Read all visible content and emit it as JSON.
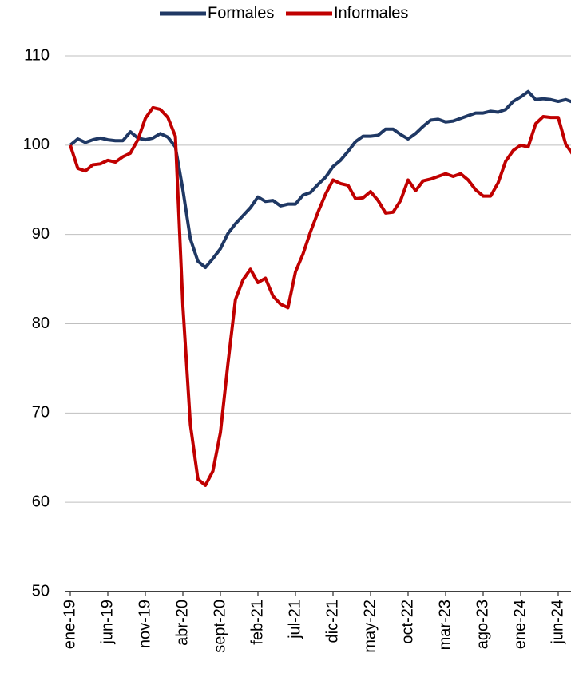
{
  "chart_data": {
    "type": "line",
    "categories": [
      "ene-19",
      null,
      null,
      null,
      null,
      "jun-19",
      null,
      null,
      null,
      null,
      "nov-19",
      null,
      null,
      null,
      null,
      "abr-20",
      null,
      null,
      null,
      null,
      "sept-20",
      null,
      null,
      null,
      null,
      "feb-21",
      null,
      null,
      null,
      null,
      "jul-21",
      null,
      null,
      null,
      null,
      "dic-21",
      null,
      null,
      null,
      null,
      "may-22",
      null,
      null,
      null,
      null,
      "oct-22",
      null,
      null,
      null,
      null,
      "mar-23",
      null,
      null,
      null,
      null,
      "ago-23",
      null,
      null,
      null,
      null,
      "ene-24",
      null,
      null,
      null,
      null,
      "jun-24",
      null,
      null
    ],
    "series": [
      {
        "name": "Formales",
        "color": "#1f3864",
        "values": [
          100,
          100.7,
          100.3,
          100.6,
          100.8,
          100.6,
          100.5,
          100.5,
          101.5,
          100.8,
          100.6,
          100.8,
          101.3,
          100.9,
          99.8,
          95,
          89.5,
          87,
          86.3,
          87.3,
          88.4,
          90.1,
          91.2,
          92.1,
          93,
          94.2,
          93.7,
          93.8,
          93.2,
          93.4,
          93.4,
          94.4,
          94.7,
          95.6,
          96.4,
          97.6,
          98.3,
          99.3,
          100.4,
          101,
          101,
          101.1,
          101.8,
          101.8,
          101.2,
          100.7,
          101.3,
          102.1,
          102.8,
          102.9,
          102.6,
          102.7,
          103,
          103.3,
          103.6,
          103.6,
          103.8,
          103.7,
          104,
          104.9,
          105.4,
          106,
          105.1,
          105.2,
          105.1,
          104.9,
          105.1,
          104.8
        ]
      },
      {
        "name": "Informales",
        "color": "#c00000",
        "values": [
          100,
          97.4,
          97.1,
          97.8,
          97.9,
          98.3,
          98.1,
          98.7,
          99.1,
          100.6,
          103,
          104.2,
          104,
          103.1,
          101,
          82,
          68.7,
          62.6,
          61.9,
          63.5,
          67.8,
          75.5,
          82.7,
          84.9,
          86.1,
          84.6,
          85.1,
          83.1,
          82.2,
          81.8,
          85.8,
          87.8,
          90.3,
          92.5,
          94.5,
          96.1,
          95.7,
          95.5,
          94,
          94.1,
          94.8,
          93.8,
          92.4,
          92.5,
          93.8,
          96.1,
          94.9,
          96,
          96.2,
          96.5,
          96.8,
          96.5,
          96.8,
          96.1,
          95,
          94.3,
          94.3,
          95.8,
          98.2,
          99.4,
          100,
          99.8,
          102.4,
          103.2,
          103.1,
          103.1,
          100.1,
          98.9
        ]
      }
    ],
    "ylim": [
      50,
      110
    ],
    "yticks": [
      50,
      60,
      70,
      80,
      90,
      100,
      110
    ],
    "grid": true,
    "legend": "top"
  }
}
